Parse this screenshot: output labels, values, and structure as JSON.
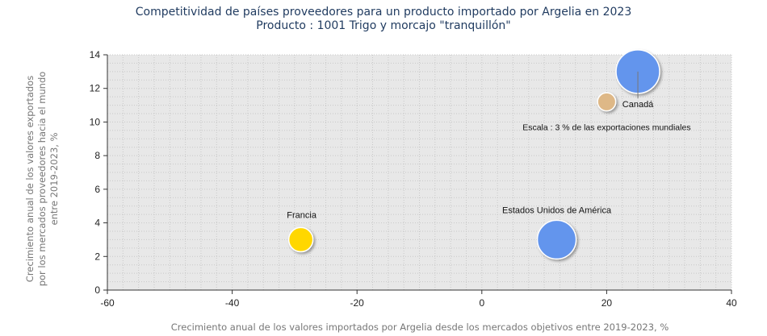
{
  "chart_data": {
    "type": "scatter",
    "title": "Competitividad de países proveedores para un producto importado por Argelia en 2023",
    "subtitle": "Producto : 1001 Trigo y morcajo \"tranquillón\"",
    "xlabel": "Crecimiento anual de los valores importados por Argelia desde los mercados objetivos entre 2019-2023, %",
    "ylabel_lines": [
      "Crecimiento anual de los valores exportados",
      "por los mercados proveedores hacia el mundo",
      "entre 2019-2023, %"
    ],
    "xlim": [
      -60,
      40
    ],
    "ylim": [
      0,
      14
    ],
    "xticks": [
      -60,
      -40,
      -20,
      0,
      20,
      40
    ],
    "yticks": [
      0,
      2,
      4,
      6,
      8,
      10,
      12,
      14
    ],
    "grid": true,
    "points": [
      {
        "name": "Francia",
        "x": -29,
        "y": 3.0,
        "color": "#ffd700",
        "size": 1.0
      },
      {
        "name": "Estados Unidos de América",
        "x": 12,
        "y": 3.0,
        "color": "#6495ed",
        "size": 1.6
      },
      {
        "name": "Canadá",
        "x": 25,
        "y": 13.0,
        "color": "#6495ed",
        "size": 1.8
      }
    ],
    "scale_legend": {
      "label": "Escala : 3 % de las exportaciones mundiales",
      "x": 20,
      "y": 11.2,
      "color": "#deb887",
      "size": 0.55
    }
  }
}
